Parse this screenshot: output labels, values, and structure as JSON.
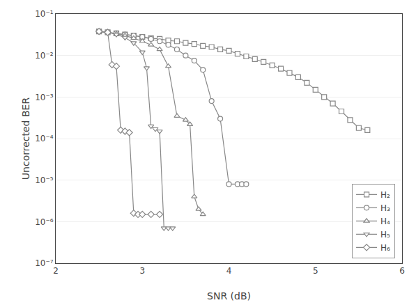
{
  "chart_data": {
    "type": "line",
    "xlabel": "SNR (dB)",
    "ylabel": "Uncorrected BER",
    "log": "y",
    "xlim": [
      2,
      6
    ],
    "xticks": [
      2,
      3,
      4,
      5,
      6
    ],
    "ylim": [
      1e-07,
      0.1
    ],
    "yticks": [
      {
        "value": 1e-07,
        "label": "10⁻⁷"
      },
      {
        "value": 1e-06,
        "label": "10⁻⁶"
      },
      {
        "value": 1e-05,
        "label": "10⁻⁵"
      },
      {
        "value": 0.0001,
        "label": "10⁻⁴"
      },
      {
        "value": 0.001,
        "label": "10⁻³"
      },
      {
        "value": 0.01,
        "label": "10⁻²"
      },
      {
        "value": 0.1,
        "label": "10⁻¹"
      }
    ],
    "grid": "y",
    "legend": "lower right",
    "color": "#888888",
    "series": [
      {
        "name": "H₂",
        "marker": "square",
        "x": [
          2.5,
          2.6,
          2.7,
          2.8,
          2.9,
          3.0,
          3.1,
          3.2,
          3.3,
          3.4,
          3.5,
          3.6,
          3.7,
          3.8,
          3.9,
          4.0,
          4.1,
          4.2,
          4.3,
          4.4,
          4.5,
          4.6,
          4.7,
          4.8,
          4.9,
          5.0,
          5.1,
          5.2,
          5.3,
          5.4,
          5.5,
          5.6
        ],
        "values": [
          0.038,
          0.036,
          0.034,
          0.032,
          0.03,
          0.028,
          0.026,
          0.025,
          0.023,
          0.022,
          0.02,
          0.019,
          0.017,
          0.016,
          0.014,
          0.013,
          0.011,
          0.0095,
          0.0082,
          0.007,
          0.0058,
          0.0048,
          0.0038,
          0.003,
          0.0022,
          0.0015,
          0.001,
          0.0007,
          0.00045,
          0.00028,
          0.00018,
          0.00016
        ]
      },
      {
        "name": "H₃",
        "marker": "circle",
        "x": [
          2.5,
          2.6,
          2.7,
          2.8,
          2.9,
          3.0,
          3.1,
          3.2,
          3.3,
          3.4,
          3.5,
          3.6,
          3.7,
          3.8,
          3.9,
          4.0,
          4.1,
          4.15,
          4.2
        ],
        "values": [
          0.038,
          0.036,
          0.034,
          0.032,
          0.03,
          0.028,
          0.025,
          0.022,
          0.018,
          0.014,
          0.01,
          0.0075,
          0.0045,
          0.0008,
          0.0003,
          8e-06,
          8e-06,
          8e-06,
          8e-06
        ]
      },
      {
        "name": "H₄",
        "marker": "triangle-up",
        "x": [
          2.5,
          2.6,
          2.7,
          2.8,
          2.9,
          3.0,
          3.1,
          3.2,
          3.3,
          3.4,
          3.5,
          3.55,
          3.6,
          3.65,
          3.7
        ],
        "values": [
          0.038,
          0.036,
          0.033,
          0.03,
          0.026,
          0.022,
          0.018,
          0.014,
          0.0055,
          0.00035,
          0.00028,
          0.00022,
          4e-06,
          2e-06,
          1.5e-06
        ]
      },
      {
        "name": "H₅",
        "marker": "triangle-down",
        "x": [
          2.5,
          2.6,
          2.7,
          2.8,
          2.9,
          3.0,
          3.05,
          3.1,
          3.15,
          3.2,
          3.25,
          3.3,
          3.35
        ],
        "values": [
          0.038,
          0.036,
          0.032,
          0.027,
          0.02,
          0.012,
          0.005,
          0.0002,
          0.00017,
          0.00015,
          7e-07,
          7e-07,
          7e-07
        ]
      },
      {
        "name": "H₆",
        "marker": "diamond",
        "x": [
          2.5,
          2.6,
          2.65,
          2.7,
          2.75,
          2.8,
          2.85,
          2.9,
          2.95,
          3.0,
          3.1,
          3.2
        ],
        "values": [
          0.038,
          0.036,
          0.006,
          0.0055,
          0.00016,
          0.00015,
          0.00014,
          1.6e-06,
          1.5e-06,
          1.5e-06,
          1.5e-06,
          1.5e-06
        ]
      }
    ]
  }
}
